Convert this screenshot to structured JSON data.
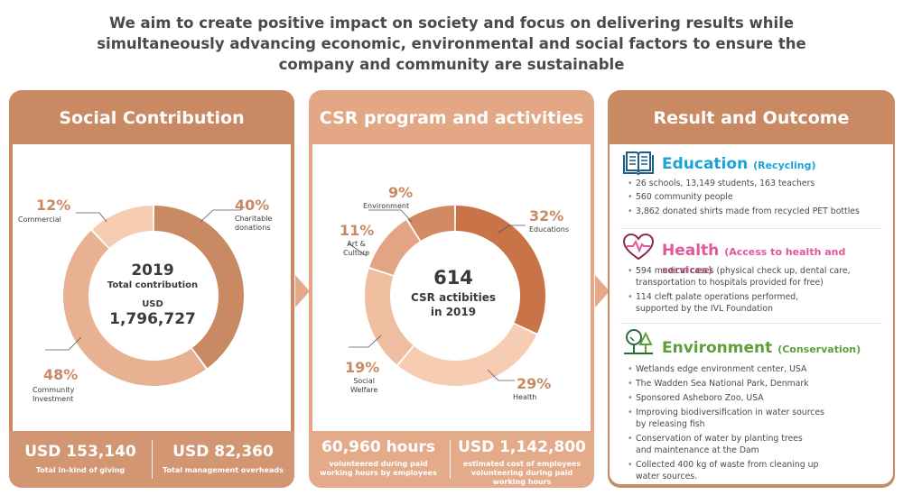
{
  "headline": "We aim to create positive impact on society and focus on delivering results while simultaneously advancing economic, environmental and social factors to ensure the company and community are sustainable",
  "social": {
    "title": "Social Contribution",
    "center": {
      "year": "2019",
      "label": "Total contribution",
      "currency": "USD",
      "amount": "1,796,727"
    },
    "slices": [
      {
        "pct": "40%",
        "label_line1": "Charitable",
        "label_line2": "donations",
        "value": 40,
        "color": "#c98a63"
      },
      {
        "pct": "48%",
        "label_line1": "Community",
        "label_line2": "Investment",
        "value": 48,
        "color": "#e7b192"
      },
      {
        "pct": "12%",
        "label_line1": "Commercial",
        "label_line2": "",
        "value": 12,
        "color": "#f6cdb3"
      }
    ],
    "footer": [
      {
        "value": "USD 153,140",
        "label": "Total in-kind of giving"
      },
      {
        "value": "USD 82,360",
        "label": "Total management overheads"
      }
    ]
  },
  "csr": {
    "title": "CSR program and activities",
    "center": {
      "count": "614",
      "line1": "CSR actibities",
      "line2": "in 2019"
    },
    "slices": [
      {
        "pct": "32%",
        "label_line1": "Educations",
        "label_line2": "",
        "value": 32,
        "color": "#c87348"
      },
      {
        "pct": "29%",
        "label_line1": "Health",
        "label_line2": "",
        "value": 29,
        "color": "#f6cdb3"
      },
      {
        "pct": "19%",
        "label_line1": "Social",
        "label_line2": "Welfare",
        "value": 19,
        "color": "#efbd9f"
      },
      {
        "pct": "11%",
        "label_line1": "Art &",
        "label_line2": "Culture",
        "value": 11,
        "color": "#e3a483"
      },
      {
        "pct": "9%",
        "label_line1": "Environment",
        "label_line2": "",
        "value": 9,
        "color": "#d28a63"
      }
    ],
    "footer": [
      {
        "value": "60,960 hours",
        "label_line1": "volunteered during paid",
        "label_line2": "working hours by employees",
        "label_line3": ""
      },
      {
        "value": "USD 1,142,800",
        "label_line1": "estimated cost of employees",
        "label_line2": "volunteering during paid",
        "label_line3": "working hours"
      }
    ]
  },
  "result": {
    "title": "Result and Outcome",
    "education": {
      "title": "Education",
      "sub": "(Recycling)",
      "color": "#1aa3d8",
      "items": [
        "26 schools, 13,149 students, 163 teachers",
        "560 community people",
        "3,862 donated shirts made from recycled PET bottles"
      ]
    },
    "health": {
      "title": "Health",
      "sub": "(Access to health and services)",
      "color": "#e2579a",
      "items": [
        {
          "l1": "594 medical cases (physical check up, dental care,",
          "l2": "transportation to hospitals provided for free)"
        },
        {
          "l1": "114 cleft palate operations performed,",
          "l2": "supported by the IVL Foundation"
        }
      ]
    },
    "environment": {
      "title": "Environment",
      "sub": "(Conservation)",
      "color": "#5e9f3a",
      "items": [
        {
          "l1": "Wetlands edge environment center, USA",
          "l2": ""
        },
        {
          "l1": "The Wadden Sea National Park, Denmark",
          "l2": ""
        },
        {
          "l1": "Sponsored Asheboro Zoo, USA",
          "l2": ""
        },
        {
          "l1": "Improving biodiversification in water sources",
          "l2": "by releasing fish"
        },
        {
          "l1": "Conservation of water by planting trees",
          "l2": "and maintenance at the Dam"
        },
        {
          "l1": "Collected 400 kg of waste from cleaning up",
          "l2": "water sources."
        }
      ]
    }
  },
  "colors": {
    "panel_dark": "#c98a63",
    "panel_light": "#e3a786",
    "accent": "#c98a63"
  }
}
